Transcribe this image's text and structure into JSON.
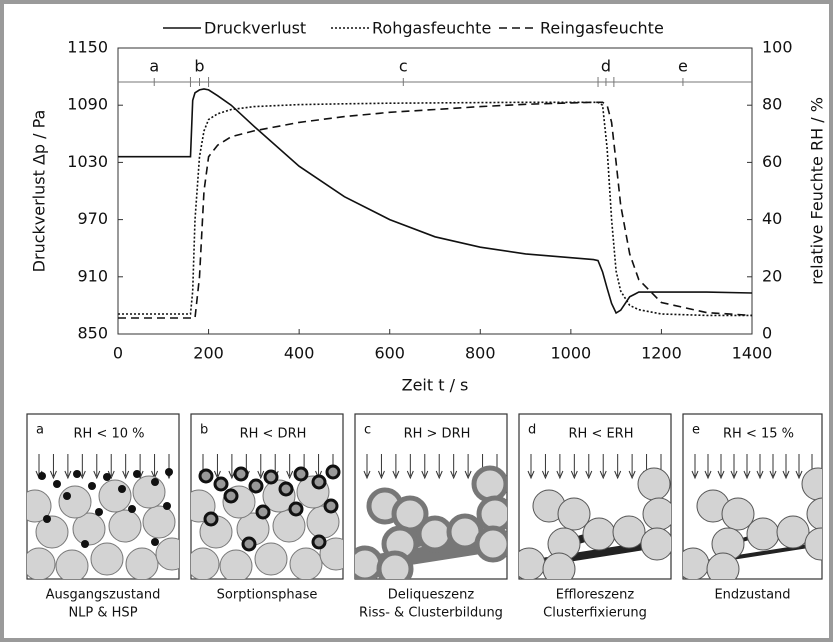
{
  "chart_data": {
    "type": "line",
    "xlabel": "Zeit t / s",
    "ylabel": "Druckverlust Δp / Pa",
    "y2label": "relative Feuchte RH / %",
    "xlim": [
      0,
      1400
    ],
    "xticks": [
      0,
      200,
      400,
      600,
      800,
      1000,
      1200,
      1400
    ],
    "ylim": [
      850,
      1150
    ],
    "yticks": [
      850,
      910,
      970,
      1030,
      1090,
      1150
    ],
    "y2lim": [
      0,
      100
    ],
    "y2ticks": [
      0,
      20,
      40,
      60,
      80,
      100
    ],
    "phases": [
      "a",
      "b",
      "c",
      "d",
      "e"
    ],
    "phase_boundaries": [
      160,
      200,
      1060,
      1095
    ],
    "x": [
      0,
      150,
      160,
      165,
      170,
      180,
      190,
      200,
      220,
      250,
      300,
      400,
      500,
      600,
      700,
      800,
      900,
      1000,
      1050,
      1060,
      1070,
      1080,
      1090,
      1100,
      1110,
      1130,
      1150,
      1200,
      1300,
      1400
    ],
    "series": [
      {
        "name": "Druckverlust",
        "color": "#111111",
        "dash": "solid",
        "axis": "y",
        "values": [
          1036,
          1036,
          1036,
          1095,
          1103,
          1106,
          1107,
          1106,
          1100,
          1090,
          1068,
          1026,
          994,
          970,
          952,
          941,
          934,
          930,
          928,
          927,
          915,
          898,
          882,
          872,
          875,
          889,
          894,
          894,
          894,
          893
        ]
      },
      {
        "name": "Rohgasfeuchte",
        "color": "#111111",
        "dash": "dotted",
        "axis": "y2",
        "values": [
          7,
          7,
          7,
          15,
          40,
          62,
          71,
          75,
          77,
          78.5,
          79.5,
          80.2,
          80.5,
          80.7,
          80.8,
          80.9,
          81,
          81,
          81,
          81,
          80,
          65,
          40,
          22,
          15,
          10,
          8.5,
          7,
          6.5,
          6.5
        ]
      },
      {
        "name": "Reingasfeuchte",
        "color": "#111111",
        "dash": "dashed",
        "axis": "y2",
        "values": [
          5.6,
          5.6,
          5.6,
          5.6,
          5.6,
          20,
          50,
          62,
          66,
          69,
          71,
          74,
          76,
          77.5,
          78.5,
          79.5,
          80.3,
          80.8,
          81,
          81,
          81,
          80,
          74,
          60,
          45,
          28,
          19,
          11,
          7.5,
          6.5
        ]
      }
    ]
  },
  "panels": [
    {
      "letter": "a",
      "condition": "RH < 10 %",
      "caption": [
        "Ausgangszustand",
        "NLP & HSP"
      ]
    },
    {
      "letter": "b",
      "condition": "RH < DRH",
      "caption": [
        "Sorptionsphase"
      ]
    },
    {
      "letter": "c",
      "condition": "RH > DRH",
      "caption": [
        "Deliqueszenz",
        "Riss- & Clusterbildung"
      ]
    },
    {
      "letter": "d",
      "condition": "RH < ERH",
      "caption": [
        "Effloreszenz",
        "Clusterfixierung"
      ]
    },
    {
      "letter": "e",
      "condition": "RH < 15 %",
      "caption": [
        "Endzustand"
      ]
    }
  ]
}
